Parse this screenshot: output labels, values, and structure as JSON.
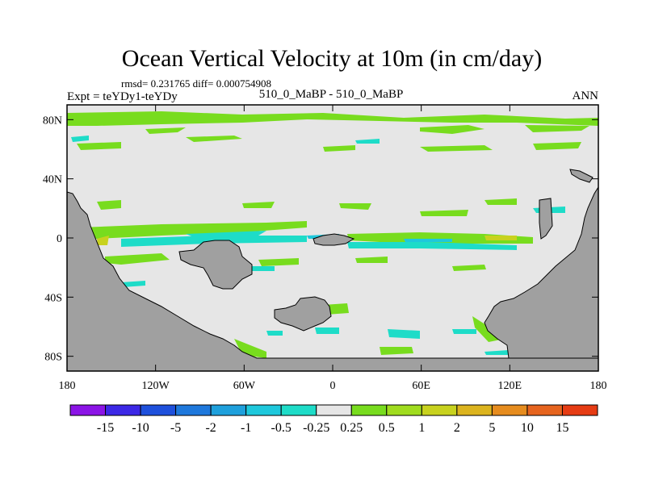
{
  "chart_data": {
    "type": "contour-map",
    "title": "Ocean Vertical Velocity at 10m (in cm/day)",
    "stats": "rmsd= 0.231765 diff= 0.000754908",
    "left_label": "Expt = teYDy1-teYDy",
    "center_label": "510_0_MaBP - 510_0_MaBP",
    "right_label": "ANN",
    "x_axis": {
      "range": [
        -180,
        180
      ],
      "ticks": [
        -180,
        -120,
        -60,
        0,
        60,
        120,
        180
      ],
      "tick_labels": [
        "180",
        "120W",
        "60W",
        "0",
        "60E",
        "120E",
        "180"
      ]
    },
    "y_axis": {
      "range": [
        -90,
        90
      ],
      "ticks": [
        80,
        40,
        0,
        -40,
        -80
      ],
      "tick_labels": [
        "80N",
        "40N",
        "0",
        "40S",
        "80S"
      ]
    },
    "colorbar": {
      "labels": [
        "-15",
        "-10",
        "-5",
        "-2",
        "-1",
        "-0.5",
        "-0.25",
        "0.25",
        "0.5",
        "1",
        "2",
        "5",
        "10",
        "15"
      ],
      "colors": [
        "#8b14e6",
        "#3c28e6",
        "#1e50dc",
        "#1e78dc",
        "#1ea0dc",
        "#1ec8dc",
        "#1edcc8",
        "#e6e6e6",
        "#78dc1e",
        "#a0dc1e",
        "#c8d21e",
        "#dcb41e",
        "#e68c1e",
        "#e6641e",
        "#e63c14"
      ]
    },
    "land_color": "#a0a0a0",
    "ocean_color": "#e6e6e6"
  }
}
